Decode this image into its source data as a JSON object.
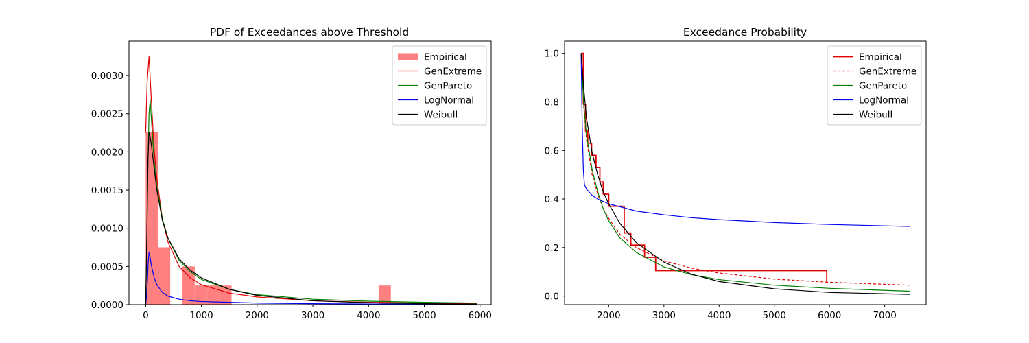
{
  "chart_data": [
    {
      "type": "line",
      "title": "PDF of Exceedances above Threshold",
      "xlabel": "",
      "ylabel": "",
      "xlim": [
        -300,
        6200
      ],
      "ylim": [
        0,
        0.00345
      ],
      "xticks": [
        0,
        1000,
        2000,
        3000,
        4000,
        5000,
        6000
      ],
      "xtick_labels": [
        "0",
        "1000",
        "2000",
        "3000",
        "4000",
        "5000",
        "6000"
      ],
      "yticks": [
        0,
        0.0005,
        0.001,
        0.0015,
        0.002,
        0.0025,
        0.003
      ],
      "ytick_labels": [
        "0.0000",
        "0.0005",
        "0.0010",
        "0.0015",
        "0.0020",
        "0.0025",
        "0.0030"
      ],
      "legend_position": "top-right",
      "histogram": {
        "name": "Empirical",
        "color": "#ff8080",
        "bins": [
          {
            "x0": 0,
            "x1": 220,
            "value": 0.00226
          },
          {
            "x0": 220,
            "x1": 440,
            "value": 0.00075
          },
          {
            "x0": 660,
            "x1": 880,
            "value": 0.0005
          },
          {
            "x0": 880,
            "x1": 1100,
            "value": 0.00025
          },
          {
            "x0": 1100,
            "x1": 1320,
            "value": 0.00025
          },
          {
            "x0": 1320,
            "x1": 1540,
            "value": 0.00025
          },
          {
            "x0": 4180,
            "x1": 4400,
            "value": 0.00025
          }
        ]
      },
      "series": [
        {
          "name": "GenExtreme",
          "color": "#e00000",
          "x": [
            0,
            25,
            60,
            100,
            150,
            200,
            300,
            400,
            600,
            800,
            1000,
            1500,
            2000,
            3000,
            4000,
            5000,
            5950
          ],
          "y": [
            0.00225,
            0.0029,
            0.00325,
            0.0027,
            0.00205,
            0.00165,
            0.00112,
            0.00082,
            0.0005,
            0.00035,
            0.00026,
            0.00015,
            0.0001,
            5e-05,
            3e-05,
            2e-05,
            1.5e-05
          ]
        },
        {
          "name": "GenPareto",
          "color": "#008000",
          "x": [
            0,
            20,
            40,
            60,
            80,
            100,
            150,
            200,
            300,
            400,
            600,
            800,
            1000,
            1500,
            2000,
            3000,
            4000,
            5000,
            5950
          ],
          "y": [
            0,
            0.0008,
            0.0018,
            0.0025,
            0.00268,
            0.00245,
            0.0019,
            0.00155,
            0.00112,
            0.00087,
            0.00058,
            0.00043,
            0.00033,
            0.0002,
            0.00013,
            7e-05,
            4.5e-05,
            3e-05,
            2e-05
          ]
        },
        {
          "name": "LogNormal",
          "color": "#0000ee",
          "x": [
            0,
            15,
            30,
            45,
            60,
            80,
            100,
            150,
            200,
            300,
            400,
            600,
            800,
            1000,
            1500,
            2000,
            3000,
            4000,
            5000,
            5950
          ],
          "y": [
            0,
            0.0001,
            0.0003,
            0.00055,
            0.00068,
            0.00062,
            0.00052,
            0.00036,
            0.00026,
            0.00016,
            0.00011,
            7e-05,
            5e-05,
            4e-05,
            3e-05,
            2e-05,
            1.2e-05,
            8e-06,
            6e-06,
            4e-06
          ]
        },
        {
          "name": "Weibull",
          "color": "#000000",
          "x": [
            0,
            20,
            40,
            60,
            80,
            100,
            150,
            200,
            300,
            400,
            600,
            800,
            1000,
            1500,
            2000,
            3000,
            4000,
            5000,
            5950
          ],
          "y": [
            0,
            0.0009,
            0.0019,
            0.00225,
            0.0022,
            0.0021,
            0.0018,
            0.0015,
            0.0011,
            0.00087,
            0.0006,
            0.00045,
            0.00035,
            0.0002,
            0.00012,
            5e-05,
            2.5e-05,
            1.2e-05,
            7e-06
          ]
        }
      ]
    },
    {
      "type": "line",
      "title": "Exceedance Probability",
      "xlabel": "",
      "ylabel": "",
      "xlim": [
        1200,
        7750
      ],
      "ylim": [
        -0.035,
        1.05
      ],
      "xticks": [
        2000,
        3000,
        4000,
        5000,
        6000,
        7000
      ],
      "xtick_labels": [
        "2000",
        "3000",
        "4000",
        "5000",
        "6000",
        "7000"
      ],
      "yticks": [
        0,
        0.2,
        0.4,
        0.6,
        0.8,
        1.0
      ],
      "ytick_labels": [
        "0.0",
        "0.2",
        "0.4",
        "0.6",
        "0.8",
        "1.0"
      ],
      "legend_position": "top-right",
      "series": [
        {
          "name": "Empirical",
          "color": "#e00000",
          "dash": "none",
          "width": 1.8,
          "step": true,
          "x": [
            1500,
            1540,
            1580,
            1620,
            1690,
            1770,
            1840,
            1900,
            2000,
            2100,
            2280,
            2400,
            2650,
            2850,
            3000,
            3500,
            4000,
            5000,
            5950
          ],
          "y": [
            1.0,
            0.79,
            0.68,
            0.63,
            0.58,
            0.53,
            0.47,
            0.42,
            0.37,
            0.37,
            0.26,
            0.21,
            0.16,
            0.105,
            0.105,
            0.105,
            0.105,
            0.105,
            0.053
          ]
        },
        {
          "name": "GenExtreme",
          "color": "#e00000",
          "dash": "4,3",
          "width": 1.2,
          "step": false,
          "x": [
            1500,
            1550,
            1600,
            1700,
            1800,
            1900,
            2000,
            2200,
            2500,
            3000,
            3500,
            4000,
            5000,
            6000,
            7450
          ],
          "y": [
            1.0,
            0.77,
            0.64,
            0.5,
            0.42,
            0.36,
            0.32,
            0.255,
            0.2,
            0.145,
            0.115,
            0.095,
            0.07,
            0.057,
            0.045
          ]
        },
        {
          "name": "GenPareto",
          "color": "#008000",
          "dash": "none",
          "width": 1.2,
          "step": false,
          "x": [
            1500,
            1550,
            1600,
            1700,
            1800,
            1900,
            2000,
            2200,
            2500,
            3000,
            3500,
            4000,
            5000,
            6000,
            7450
          ],
          "y": [
            1.0,
            0.78,
            0.66,
            0.52,
            0.43,
            0.36,
            0.31,
            0.24,
            0.18,
            0.12,
            0.088,
            0.068,
            0.045,
            0.032,
            0.02
          ]
        },
        {
          "name": "LogNormal",
          "color": "#0000ee",
          "dash": "none",
          "width": 1.2,
          "step": false,
          "x": [
            1500,
            1520,
            1540,
            1560,
            1600,
            1700,
            1800,
            2000,
            2500,
            3000,
            3500,
            4000,
            5000,
            6000,
            7450
          ],
          "y": [
            1.0,
            0.7,
            0.52,
            0.46,
            0.44,
            0.415,
            0.4,
            0.38,
            0.35,
            0.335,
            0.323,
            0.315,
            0.303,
            0.295,
            0.287
          ]
        },
        {
          "name": "Weibull",
          "color": "#000000",
          "dash": "none",
          "width": 1.2,
          "step": false,
          "x": [
            1500,
            1550,
            1600,
            1700,
            1800,
            1900,
            2000,
            2200,
            2500,
            3000,
            3500,
            4000,
            5000,
            6000,
            7450
          ],
          "y": [
            1.0,
            0.85,
            0.73,
            0.59,
            0.5,
            0.43,
            0.38,
            0.3,
            0.22,
            0.14,
            0.09,
            0.06,
            0.03,
            0.015,
            0.007
          ]
        }
      ]
    }
  ]
}
